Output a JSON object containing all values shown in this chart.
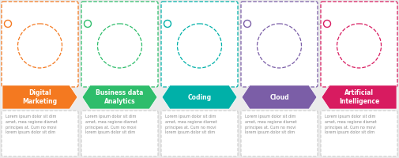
{
  "steps": [
    {
      "title": "Digital\nMarketing",
      "color": "#F47920",
      "text": "Lorem ipsum dolor sit dim\namet, mea regione diamet\nprincipes at. Cum no movi\nlorem ipsum dolor sit dim"
    },
    {
      "title": "Business data\nAnalytics",
      "color": "#2EBD6B",
      "text": "Lorem ipsum dolor sit dim\namet, mea regione diamet\nprincipes at. Cum no movi\nlorem ipsum dolor sit dim"
    },
    {
      "title": "Coding",
      "color": "#00B0A8",
      "text": "Lorem ipsum dolor sit dim\namet, mea regione diamet\nprincipes at. Cum no movi\nlorem ipsum dolor sit dim"
    },
    {
      "title": "Cloud",
      "color": "#7B5EA7",
      "text": "Lorem ipsum dolor sit dim\namet, mea regione diamet\nprincipes at. Cum no movi\nlorem ipsum dolor sit dim"
    },
    {
      "title": "Artificial\nIntelligence",
      "color": "#D81B60",
      "text": "Lorem ipsum dolor sit dim\namet, mea regione diamet\nprincipes at. Cum no movi\nlorem ipsum dolor sit dim"
    }
  ],
  "bg_color": "#EBEBEB",
  "card_bg": "#FFFFFF",
  "timeline_color": "#BBBBBB",
  "n": 5,
  "fig_w": 5.05,
  "fig_h": 2.0,
  "dpi": 100
}
